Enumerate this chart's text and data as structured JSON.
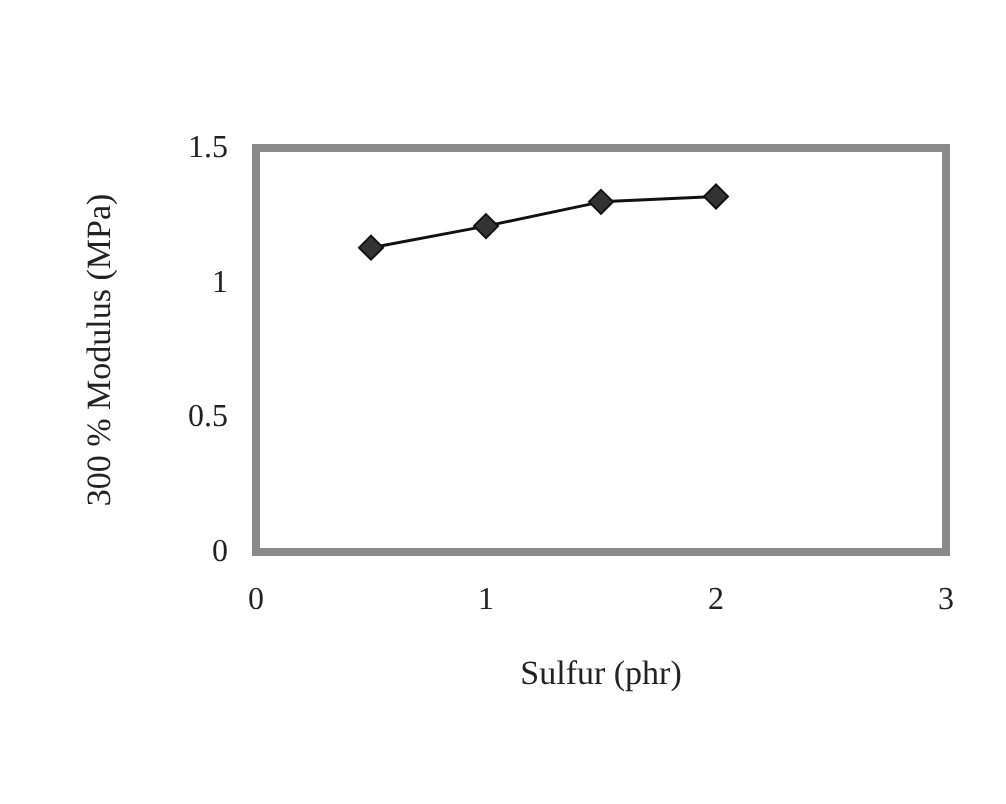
{
  "chart_data": {
    "type": "line",
    "xlabel": "Sulfur (phr)",
    "ylabel": "300 % Modulus (MPa)",
    "x": [
      0.5,
      1,
      1.5,
      2
    ],
    "series": [
      {
        "color": "#333333",
        "values": [
          1.13,
          1.21,
          1.3,
          1.32
        ]
      }
    ],
    "xlim": [
      0,
      3
    ],
    "xticks": [
      0,
      1,
      2,
      3
    ],
    "ylim": [
      0,
      1.5
    ],
    "yticks": [
      0,
      0.5,
      1,
      1.5
    ],
    "grid": false,
    "marker": "diamond",
    "line_style": "solid"
  }
}
